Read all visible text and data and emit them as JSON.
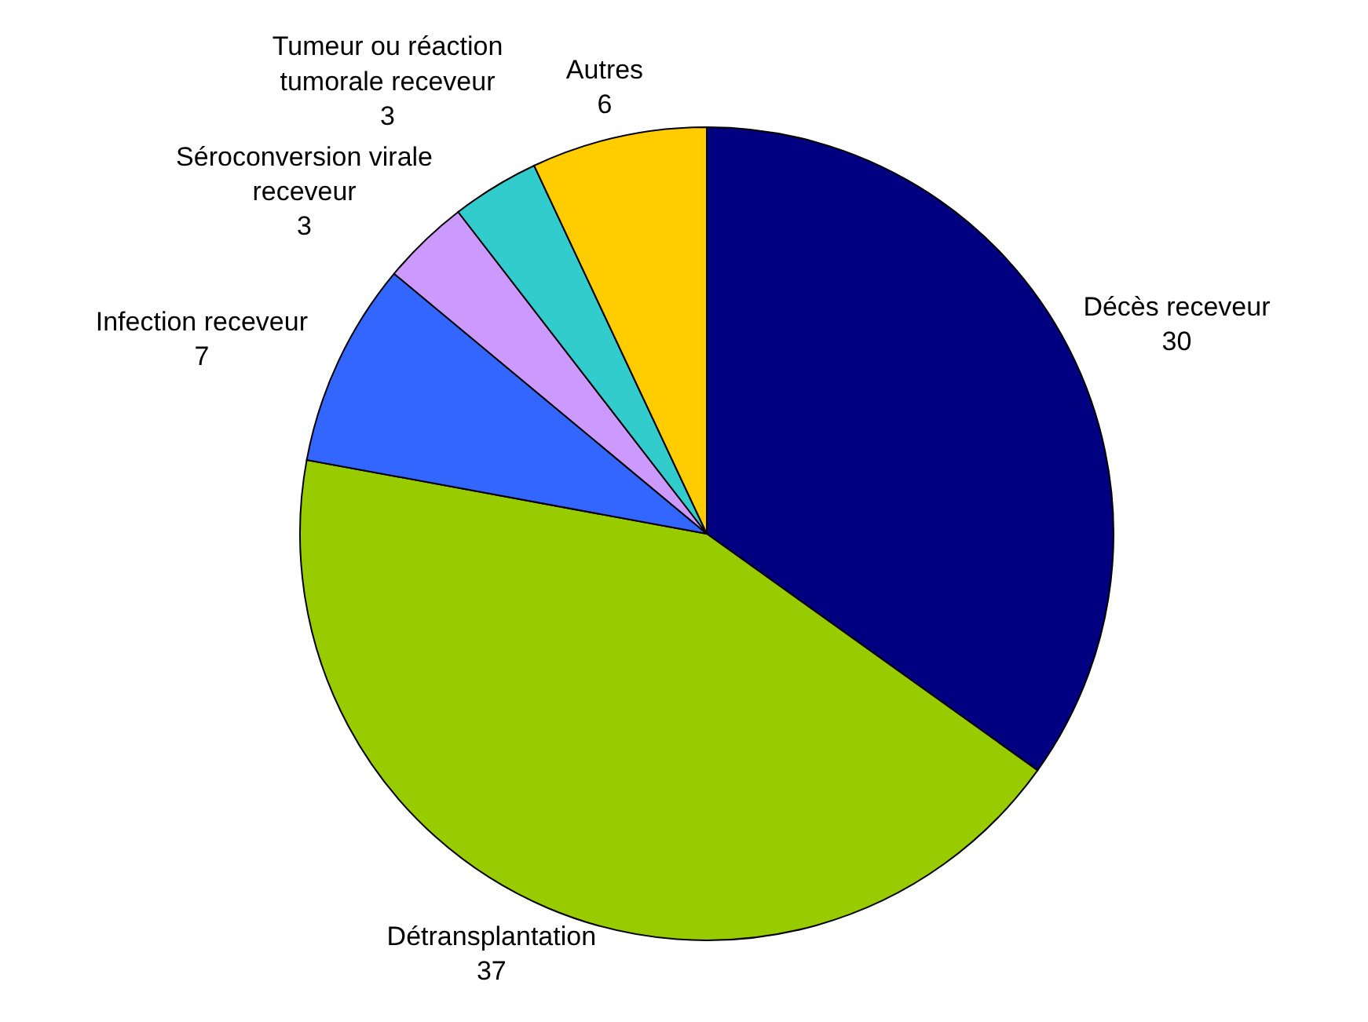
{
  "chart_data": {
    "type": "pie",
    "categories": [
      "Décès receveur",
      "Détransplantation",
      "Infection receveur",
      "Séroconversion virale receveur",
      "Tumeur ou réaction tumorale receveur",
      "Autres"
    ],
    "values": [
      30,
      37,
      7,
      3,
      3,
      6
    ],
    "colors": [
      "#000080",
      "#99cc00",
      "#3366ff",
      "#cc99ff",
      "#33cccc",
      "#ffcc00"
    ],
    "data_labels": true
  }
}
